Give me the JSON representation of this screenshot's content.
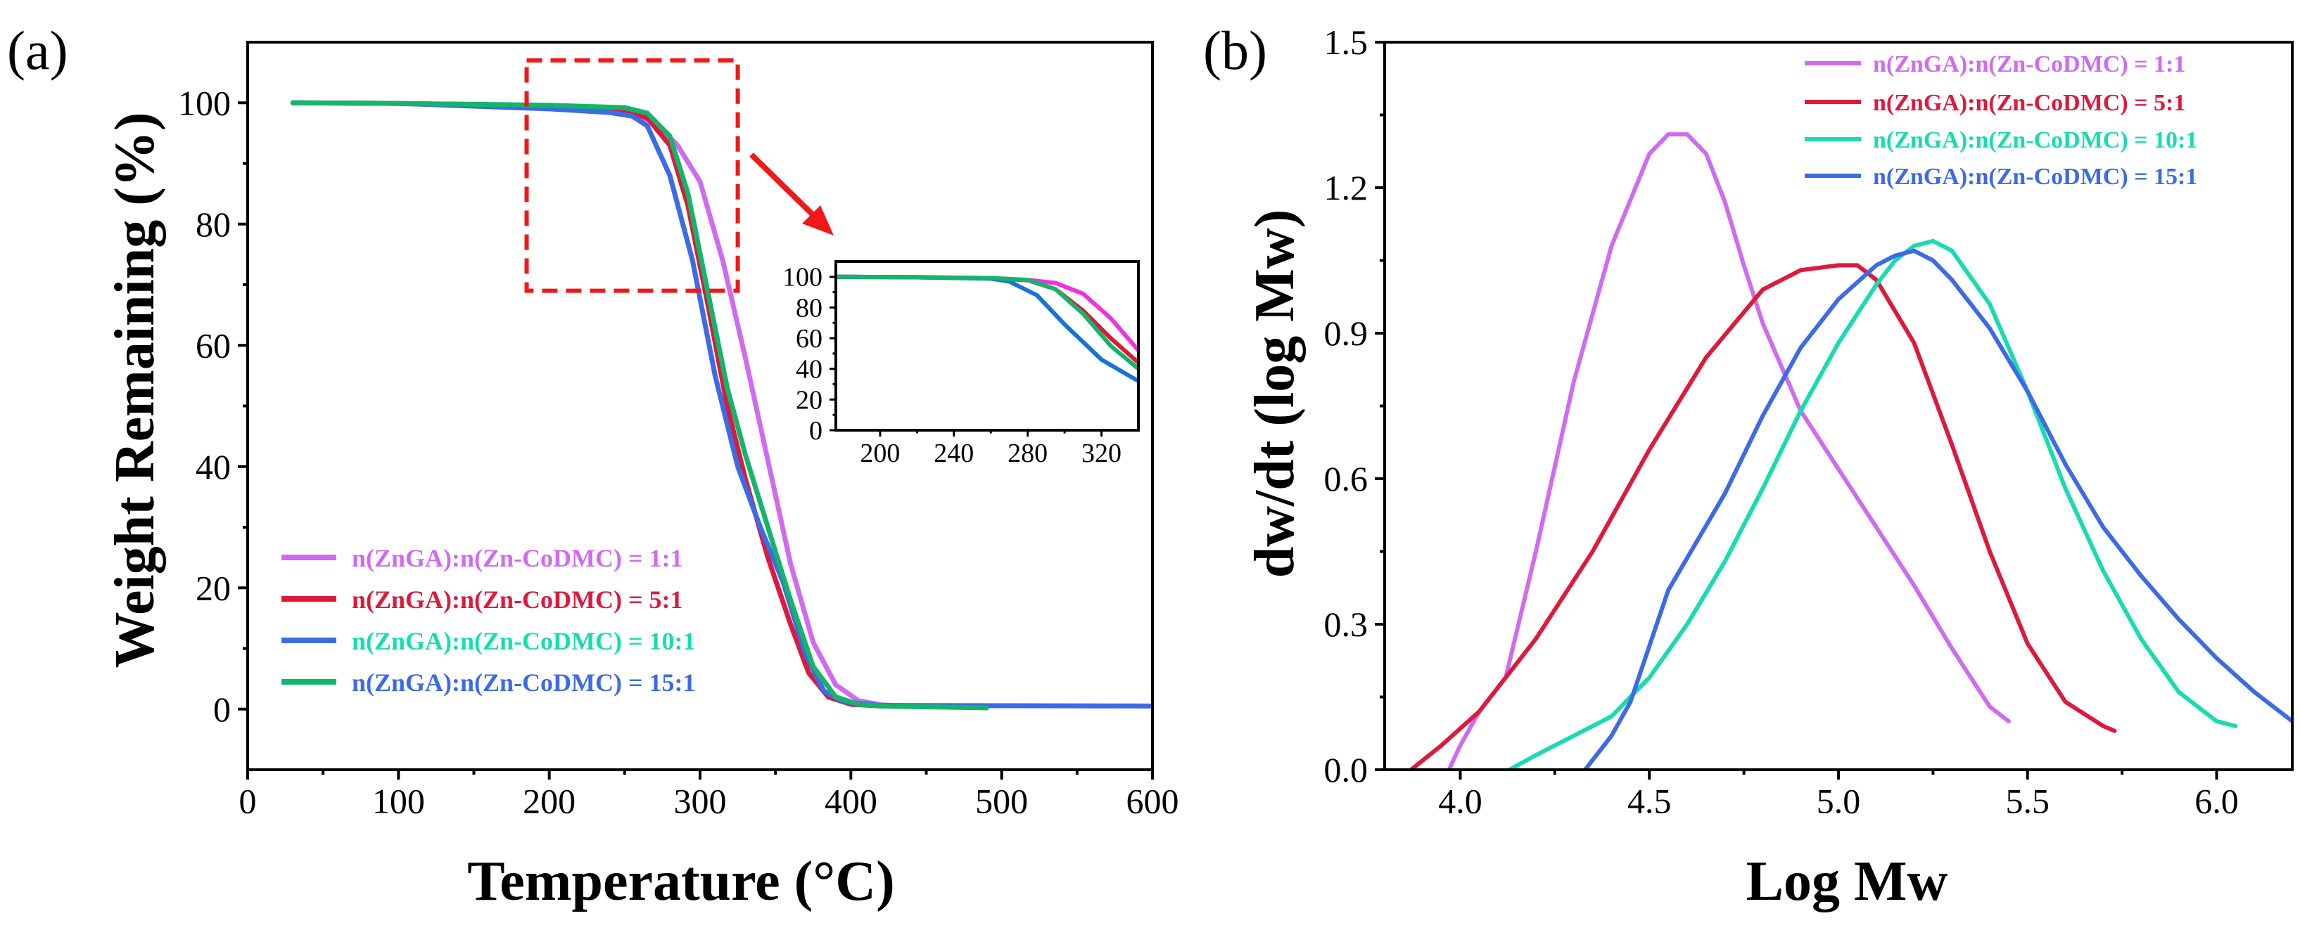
{
  "colors": {
    "magenta": "#cf6bf0",
    "red": "#dc1a3c",
    "cyan": "#17dcb0",
    "blue": "#3d6ae6",
    "green": "#14b56a",
    "inset_magenta": "#ee32e0",
    "inset_blue": "#1773d6",
    "zoom": "#f01818"
  },
  "chart_data": [
    {
      "panel_label": "(a)",
      "type": "line",
      "xlabel": "Temperature (°C)",
      "ylabel": "Weight Remaining (%)",
      "xlim": [
        0,
        600
      ],
      "ylim": [
        -10,
        110
      ],
      "xticks": [
        0,
        100,
        200,
        300,
        400,
        500,
        600
      ],
      "yticks": [
        0,
        20,
        40,
        60,
        80,
        100
      ],
      "xtick_labels": [
        "0",
        "100",
        "200",
        "300",
        "400",
        "500",
        "600"
      ],
      "ytick_labels": [
        "0",
        "20",
        "40",
        "60",
        "80",
        "100"
      ],
      "legend_position": "bottom-left",
      "series": [
        {
          "name": "n(ZnGA):n(Zn-CoDMC) = 1:1",
          "color": "#cf6bf0",
          "x": [
            30,
            100,
            200,
            250,
            270,
            285,
            300,
            315,
            330,
            345,
            360,
            375,
            390,
            405,
            420,
            440,
            490
          ],
          "y": [
            100,
            99.9,
            99.2,
            98.3,
            96.8,
            93,
            87,
            74,
            58,
            41,
            24,
            11,
            4,
            1.4,
            0.7,
            0.5,
            0.3
          ]
        },
        {
          "name": "n(ZnGA):n(Zn-CoDMC) = 5:1",
          "color": "#dc1a3c",
          "x": [
            30,
            100,
            200,
            250,
            265,
            280,
            292,
            305,
            318,
            330,
            345,
            360,
            372,
            385,
            400,
            420,
            490
          ],
          "y": [
            100,
            99.9,
            99.4,
            98.8,
            97.5,
            93,
            83,
            67,
            50,
            38,
            25,
            14,
            6,
            2,
            0.8,
            0.5,
            0.3
          ]
        },
        {
          "name": "n(ZnGA):n(Zn-CoDMC) = 10:1",
          "color": "#3d6ae6",
          "x": [
            30,
            100,
            200,
            240,
            255,
            265,
            280,
            295,
            310,
            325,
            340,
            355,
            370,
            382,
            395,
            420,
            600
          ],
          "y": [
            100,
            99.9,
            99,
            98.4,
            97.8,
            96.2,
            88,
            74,
            55,
            40,
            30,
            21,
            9,
            3,
            1.2,
            0.6,
            0.5
          ]
        },
        {
          "name": "n(ZnGA):n(Zn-CoDMC) = 15:1",
          "color": "#14b56a",
          "x": [
            30,
            100,
            200,
            250,
            265,
            280,
            292,
            305,
            318,
            330,
            345,
            360,
            375,
            390,
            405,
            420,
            490
          ],
          "y": [
            100,
            99.9,
            99.6,
            99.2,
            98.3,
            94.5,
            85,
            69,
            53,
            42,
            30,
            18,
            7,
            2,
            0.8,
            0.5,
            0.2
          ]
        }
      ],
      "inset": {
        "type": "line",
        "xlim": [
          176,
          340
        ],
        "ylim": [
          0,
          110
        ],
        "xticks": [
          200,
          240,
          280,
          320
        ],
        "yticks": [
          0,
          20,
          40,
          60,
          80,
          100
        ],
        "xtick_labels": [
          "200",
          "240",
          "280",
          "320"
        ],
        "ytick_labels": [
          "0",
          "20",
          "40",
          "60",
          "80",
          "100"
        ],
        "series": [
          {
            "color": "#ee32e0",
            "x": [
              176,
              220,
              260,
              280,
              295,
              310,
              325,
              340
            ],
            "y": [
              100,
              99.8,
              99.2,
              98,
              96,
              89,
              73,
              52
            ]
          },
          {
            "color": "#dc1a3c",
            "x": [
              176,
              220,
              260,
              280,
              295,
              310,
              325,
              340
            ],
            "y": [
              100,
              99.7,
              99,
              97.8,
              92,
              78,
              60,
              44
            ]
          },
          {
            "color": "#1773d6",
            "x": [
              176,
              220,
              260,
              270,
              285,
              300,
              320,
              340
            ],
            "y": [
              100,
              99.7,
              98.8,
              97,
              88,
              69,
              46,
              32
            ]
          },
          {
            "color": "#14b56a",
            "x": [
              176,
              220,
              260,
              280,
              295,
              310,
              325,
              340
            ],
            "y": [
              100,
              99.8,
              99.2,
              98,
              92,
              76,
              55,
              40
            ]
          }
        ]
      },
      "zoom_box": {
        "x": [
          185,
          325
        ],
        "y": [
          69,
          107
        ]
      }
    },
    {
      "panel_label": "(b)",
      "type": "line",
      "xlabel": "Log Mw",
      "ylabel": "dw/dt (log Mw)",
      "xlim": [
        3.8,
        6.2
      ],
      "ylim": [
        0,
        1.5
      ],
      "xticks": [
        4.0,
        4.5,
        5.0,
        5.5,
        6.0
      ],
      "yticks": [
        0.0,
        0.3,
        0.6,
        0.9,
        1.2,
        1.5
      ],
      "xtick_labels": [
        "4.0",
        "4.5",
        "5.0",
        "5.5",
        "6.0"
      ],
      "ytick_labels": [
        "0.0",
        "0.3",
        "0.6",
        "0.9",
        "1.2",
        "1.5"
      ],
      "legend_position": "top-right",
      "series": [
        {
          "name": "n(ZnGA):n(Zn-CoDMC) = 1:1",
          "color": "#cf6bf0",
          "x": [
            3.97,
            4.0,
            4.05,
            4.12,
            4.2,
            4.3,
            4.4,
            4.5,
            4.55,
            4.6,
            4.65,
            4.7,
            4.75,
            4.8,
            4.9,
            5.0,
            5.1,
            5.2,
            5.3,
            5.4,
            5.45
          ],
          "y": [
            0,
            0.05,
            0.12,
            0.19,
            0.45,
            0.8,
            1.08,
            1.27,
            1.31,
            1.31,
            1.27,
            1.17,
            1.04,
            0.92,
            0.74,
            0.62,
            0.5,
            0.38,
            0.25,
            0.13,
            0.1
          ]
        },
        {
          "name": "n(ZnGA):n(Zn-CoDMC) = 5:1",
          "color": "#dc1a3c",
          "x": [
            3.87,
            3.95,
            4.05,
            4.2,
            4.35,
            4.5,
            4.65,
            4.8,
            4.9,
            5.0,
            5.05,
            5.1,
            5.2,
            5.3,
            5.4,
            5.5,
            5.6,
            5.7,
            5.73
          ],
          "y": [
            0,
            0.05,
            0.12,
            0.27,
            0.45,
            0.66,
            0.85,
            0.99,
            1.03,
            1.04,
            1.04,
            1.01,
            0.88,
            0.67,
            0.45,
            0.26,
            0.14,
            0.09,
            0.08
          ]
        },
        {
          "name": "n(ZnGA):n(Zn-CoDMC) = 10:1",
          "color": "#17dcb0",
          "x": [
            4.13,
            4.2,
            4.3,
            4.4,
            4.5,
            4.6,
            4.7,
            4.8,
            4.9,
            5.0,
            5.1,
            5.15,
            5.2,
            5.25,
            5.3,
            5.4,
            5.5,
            5.6,
            5.7,
            5.8,
            5.9,
            6.0,
            6.05
          ],
          "y": [
            0,
            0.03,
            0.07,
            0.11,
            0.19,
            0.3,
            0.43,
            0.58,
            0.74,
            0.88,
            1.0,
            1.05,
            1.08,
            1.09,
            1.07,
            0.96,
            0.78,
            0.58,
            0.41,
            0.27,
            0.16,
            0.1,
            0.09
          ]
        },
        {
          "name": "n(ZnGA):n(Zn-CoDMC) = 15:1",
          "color": "#3d6ae6",
          "x": [
            4.33,
            4.4,
            4.45,
            4.55,
            4.7,
            4.8,
            4.9,
            5.0,
            5.1,
            5.15,
            5.2,
            5.25,
            5.3,
            5.4,
            5.5,
            5.6,
            5.7,
            5.8,
            5.9,
            6.0,
            6.1,
            6.2
          ],
          "y": [
            0,
            0.07,
            0.14,
            0.37,
            0.57,
            0.73,
            0.87,
            0.97,
            1.04,
            1.06,
            1.07,
            1.05,
            1.01,
            0.91,
            0.78,
            0.63,
            0.5,
            0.4,
            0.31,
            0.23,
            0.16,
            0.1
          ]
        }
      ]
    }
  ]
}
